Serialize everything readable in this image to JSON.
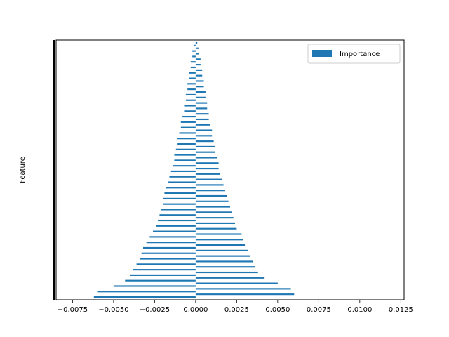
{
  "chart_data": {
    "type": "bar",
    "orientation": "horizontal",
    "xlabel": "",
    "ylabel": "Feature",
    "xlim": [
      -0.0085,
      0.0127
    ],
    "xticks": [
      -0.0075,
      -0.005,
      -0.0025,
      0.0,
      0.0025,
      0.005,
      0.0075,
      0.01,
      0.0125
    ],
    "xtick_labels": [
      "−0.0075",
      "−0.0050",
      "−0.0025",
      "0.0000",
      "0.0025",
      "0.0050",
      "0.0075",
      "0.0100",
      "0.0125"
    ],
    "legend": {
      "placement": "top-right",
      "entries": [
        "Importance"
      ]
    },
    "grid": false,
    "series": [
      {
        "name": "Importance",
        "color": "#1f77b4",
        "values": [
          -0.0062,
          0.006,
          -0.006,
          0.0058,
          -0.005,
          0.005,
          -0.0043,
          0.0042,
          -0.004,
          0.0038,
          -0.0038,
          0.0036,
          -0.0036,
          0.0035,
          -0.0034,
          0.0033,
          -0.0033,
          0.0032,
          -0.0032,
          0.003,
          -0.003,
          0.0029,
          -0.0028,
          0.0028,
          -0.0026,
          0.0025,
          -0.0024,
          0.0024,
          -0.0023,
          0.0023,
          -0.0022,
          0.0022,
          -0.0021,
          0.0021,
          -0.002,
          0.002,
          -0.002,
          0.0019,
          -0.0019,
          0.0018,
          -0.0018,
          0.0017,
          -0.0017,
          0.0016,
          -0.0016,
          0.0015,
          -0.0015,
          0.0014,
          -0.0014,
          0.0014,
          -0.0013,
          0.0013,
          -0.0013,
          0.0012,
          -0.0012,
          0.0012,
          -0.0011,
          0.0011,
          -0.0011,
          0.001,
          -0.001,
          0.001,
          -0.0009,
          0.0009,
          -0.0009,
          0.0008,
          -0.0008,
          0.0008,
          -0.0007,
          0.0007,
          -0.0007,
          0.0007,
          -0.0006,
          0.0006,
          -0.0006,
          0.0006,
          -0.0005,
          0.0005,
          -0.0005,
          0.0005,
          -0.0004,
          0.0004,
          -0.0004,
          0.0004,
          -0.0003,
          0.0003,
          -0.0003,
          0.0003,
          -0.0002,
          0.0002,
          -0.0002,
          0.0002,
          -0.0001,
          0.0001
        ]
      }
    ]
  }
}
